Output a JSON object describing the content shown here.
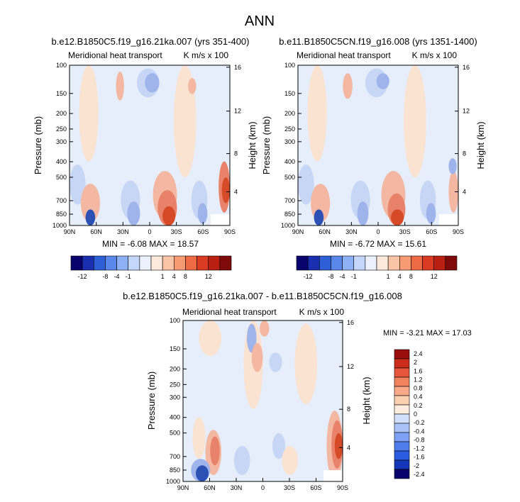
{
  "title": "ANN",
  "colors": {
    "frame": "#000000",
    "blue_levels": [
      "#9fb4ea",
      "#c7d6f4",
      "#e6eefb"
    ],
    "red_levels": [
      "#fbe3d2",
      "#f3b7a2",
      "#e8826a",
      "#d84e34"
    ],
    "deep_blue": "#2d50b5",
    "deep_red": "#d64a27"
  },
  "panel_common": {
    "subtitle_left": "Meridional heat transport",
    "subtitle_right": "K m/s x 100",
    "ylabel": "Pressure (mb)",
    "ylabel_right": "Height (km)",
    "pressure_ticks": [
      "100",
      "150",
      "200",
      "250",
      "300",
      "400",
      "500",
      "700",
      "850",
      "1000"
    ],
    "height_ticks": [
      "16",
      "12",
      "8",
      "4"
    ],
    "lat_ticks": [
      "90N",
      "60N",
      "30N",
      "0",
      "30S",
      "60S",
      "90S"
    ]
  },
  "chart_data": [
    {
      "type": "heatmap",
      "title": "b.e12.B1850C5.f19_g16.21ka.007 (yrs 351-400)",
      "stats": "MIN = -6.08  MAX = 18.57",
      "min": -6.08,
      "max": 18.57,
      "colorbar": {
        "orientation": "horizontal",
        "colors": [
          "#08036d",
          "#1a2fb0",
          "#2f5fd6",
          "#5a88ea",
          "#8eb0f4",
          "#c4d7fa",
          "#ecf2fd",
          "#fde9db",
          "#fbc4a6",
          "#f79b74",
          "#ee6a45",
          "#db3b22",
          "#ba1f13",
          "#7f0a0a"
        ],
        "tick_labels": [
          "-12",
          "-8",
          "-4",
          "-1",
          "1",
          "4",
          "8",
          "12"
        ]
      }
    },
    {
      "type": "heatmap",
      "title": "b.e11.B1850C5CN.f19_g16.008 (yrs 1351-1400)",
      "stats": "MIN = -6.72  MAX = 15.61",
      "min": -6.72,
      "max": 15.61,
      "colorbar": {
        "orientation": "horizontal",
        "colors": [
          "#08036d",
          "#1a2fb0",
          "#2f5fd6",
          "#5a88ea",
          "#8eb0f4",
          "#c4d7fa",
          "#ecf2fd",
          "#fde9db",
          "#fbc4a6",
          "#f79b74",
          "#ee6a45",
          "#db3b22",
          "#ba1f13",
          "#7f0a0a"
        ],
        "tick_labels": [
          "-12",
          "-8",
          "-4",
          "-1",
          "1",
          "4",
          "8",
          "12"
        ]
      }
    },
    {
      "type": "heatmap",
      "title": "b.e12.B1850C5.f19_g16.21ka.007 - b.e11.B1850C5CN.f19_g16.008",
      "stats": "MIN = -3.21  MAX = 17.03",
      "min": -3.21,
      "max": 17.03,
      "colorbar": {
        "orientation": "vertical",
        "colors": [
          "#08036d",
          "#1536b7",
          "#2a5be0",
          "#4d7ded",
          "#7da1f4",
          "#a9c2f8",
          "#d3e0fb",
          "#fdeddf",
          "#fbcfb1",
          "#f8a987",
          "#f1825e",
          "#e5563a",
          "#cc2d1b",
          "#9b0e0e"
        ],
        "tick_labels": [
          "2.4",
          "2",
          "1.6",
          "1.2",
          "0.8",
          "0.4",
          "0.2",
          "0",
          "-0.2",
          "-0.4",
          "-0.8",
          "-1.2",
          "-1.6",
          "-2",
          "-2.4"
        ]
      }
    }
  ]
}
